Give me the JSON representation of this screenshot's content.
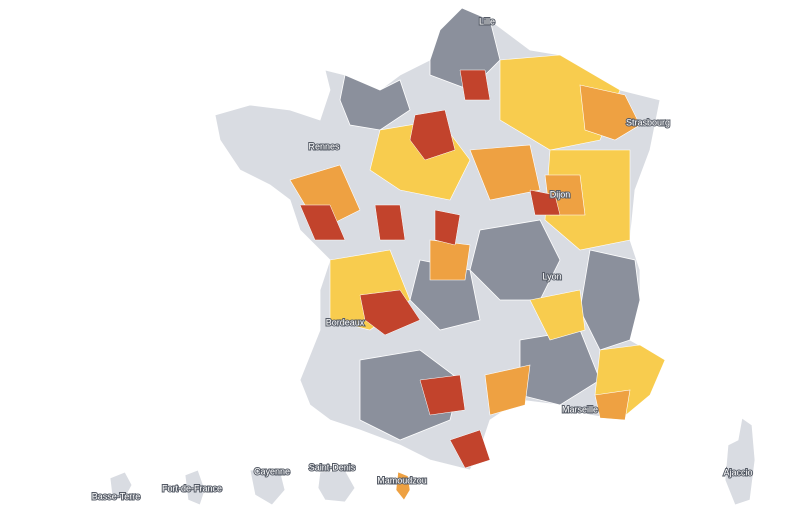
{
  "cities": [
    "Lille",
    "Strasbourg",
    "Rennes",
    "Dijon",
    "Lyon",
    "Bordeaux",
    "Marseille",
    "Ajaccio",
    "Basse-Terre",
    "Fort-de-France",
    "Cayenne",
    "Saint-Denis",
    "Mamoudzou"
  ]
}
